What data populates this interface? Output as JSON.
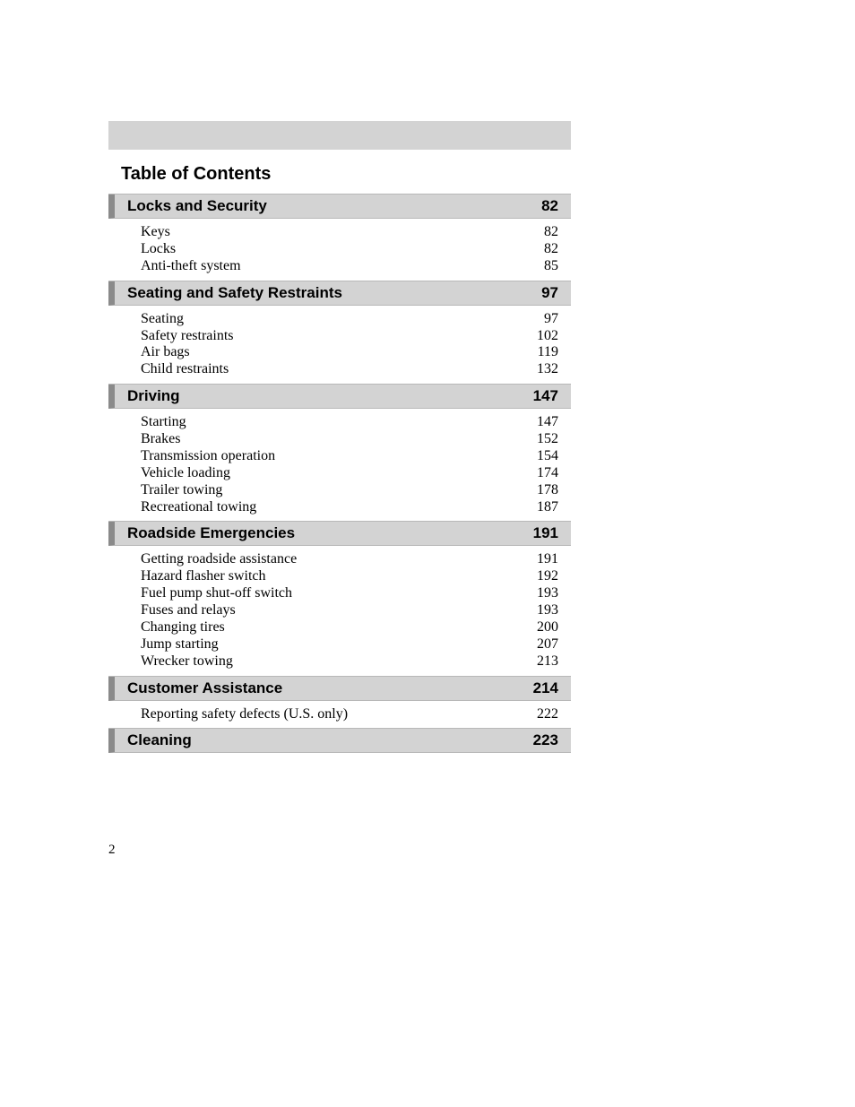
{
  "page_number": "2",
  "title": "Table of Contents",
  "colors": {
    "section_bg": "#d3d3d3",
    "section_left_border": "#8a8a8a",
    "divider": "#b8b8b8",
    "text": "#000000",
    "page_bg": "#ffffff"
  },
  "typography": {
    "heading_font": "Arial",
    "heading_weight": "bold",
    "heading_size_pt": 15,
    "title_size_pt": 17,
    "body_font": "Century Schoolbook",
    "body_size_pt": 12
  },
  "sections": [
    {
      "label": "Locks and Security",
      "page": "82",
      "items": [
        {
          "label": "Keys",
          "page": "82"
        },
        {
          "label": "Locks",
          "page": "82"
        },
        {
          "label": "Anti-theft system",
          "page": "85"
        }
      ]
    },
    {
      "label": "Seating and Safety Restraints",
      "page": "97",
      "items": [
        {
          "label": "Seating",
          "page": "97"
        },
        {
          "label": "Safety restraints",
          "page": "102"
        },
        {
          "label": "Air bags",
          "page": "119"
        },
        {
          "label": "Child restraints",
          "page": "132"
        }
      ]
    },
    {
      "label": "Driving",
      "page": "147",
      "items": [
        {
          "label": "Starting",
          "page": "147"
        },
        {
          "label": "Brakes",
          "page": "152"
        },
        {
          "label": "Transmission operation",
          "page": "154"
        },
        {
          "label": "Vehicle loading",
          "page": "174"
        },
        {
          "label": "Trailer towing",
          "page": "178"
        },
        {
          "label": "Recreational towing",
          "page": "187"
        }
      ]
    },
    {
      "label": "Roadside Emergencies",
      "page": "191",
      "items": [
        {
          "label": "Getting roadside assistance",
          "page": "191"
        },
        {
          "label": "Hazard flasher switch",
          "page": "192"
        },
        {
          "label": "Fuel pump shut-off switch",
          "page": "193"
        },
        {
          "label": "Fuses and relays",
          "page": "193"
        },
        {
          "label": "Changing tires",
          "page": "200"
        },
        {
          "label": "Jump starting",
          "page": "207"
        },
        {
          "label": "Wrecker towing",
          "page": "213"
        }
      ]
    },
    {
      "label": "Customer Assistance",
      "page": "214",
      "items": [
        {
          "label": "Reporting safety defects (U.S. only)",
          "page": "222"
        }
      ]
    },
    {
      "label": "Cleaning",
      "page": "223",
      "items": []
    }
  ]
}
